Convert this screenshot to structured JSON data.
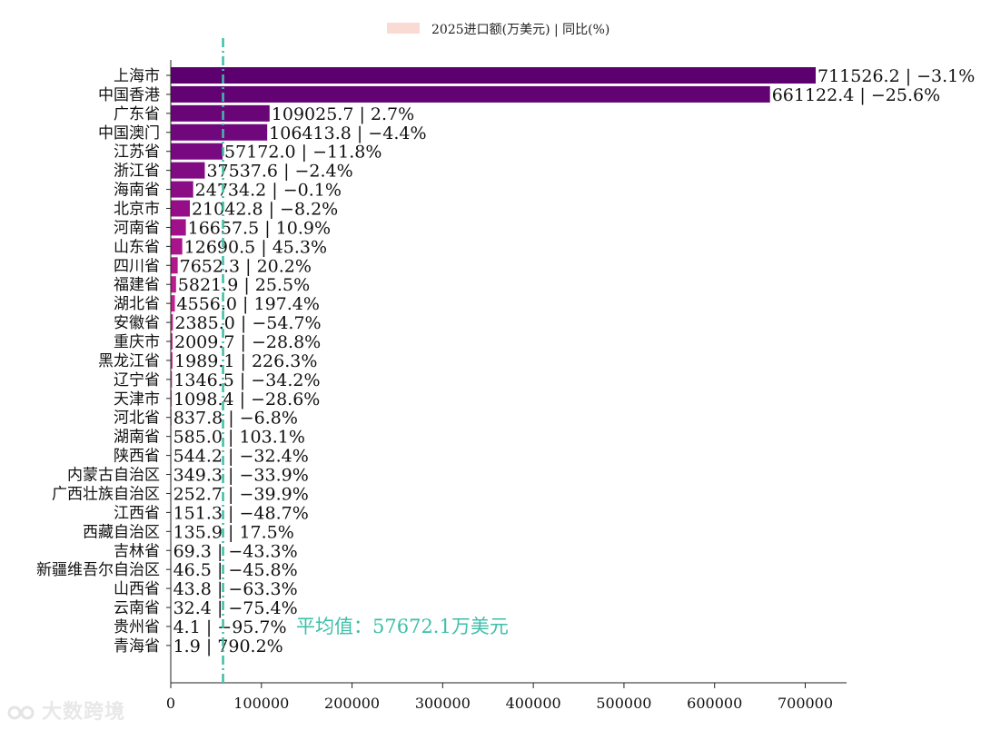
{
  "chart_data": {
    "type": "bar",
    "orientation": "horizontal",
    "legend": {
      "label": "2025进口额(万美元) | 同比(%)",
      "swatch_color": "#fadbd4",
      "position": "top-center"
    },
    "categories": [
      "上海市",
      "中国香港",
      "广东省",
      "中国澳门",
      "江苏省",
      "浙江省",
      "海南省",
      "北京市",
      "河南省",
      "山东省",
      "四川省",
      "福建省",
      "湖北省",
      "安徽省",
      "重庆市",
      "黑龙江省",
      "辽宁省",
      "天津市",
      "河北省",
      "湖南省",
      "陕西省",
      "内蒙古自治区",
      "广西壮族自治区",
      "江西省",
      "西藏自治区",
      "吉林省",
      "新疆维吾尔自治区",
      "山西省",
      "云南省",
      "贵州省",
      "青海省"
    ],
    "values": [
      711526.2,
      661122.4,
      109025.7,
      106413.8,
      57172.0,
      37537.6,
      24734.2,
      21042.8,
      16657.5,
      12690.5,
      7652.3,
      5821.9,
      4556.0,
      2385.0,
      2009.7,
      1989.1,
      1346.5,
      1098.4,
      837.8,
      585.0,
      544.2,
      349.3,
      252.7,
      151.3,
      135.9,
      69.3,
      46.5,
      43.8,
      32.4,
      4.1,
      1.9
    ],
    "data_labels": [
      "711526.2 | −3.1%",
      "661122.4 | −25.6%",
      "109025.7 | 2.7%",
      "106413.8 | −4.4%",
      "57172.0 | −11.8%",
      "37537.6 | −2.4%",
      "24734.2 | −0.1%",
      "21042.8 | −8.2%",
      "16657.5 | 10.9%",
      "12690.5 | 45.3%",
      "7652.3 | 20.2%",
      "5821.9 | 25.5%",
      "4556.0 | 197.4%",
      "2385.0 | −54.7%",
      "2009.7 | −28.8%",
      "1989.1 | 226.3%",
      "1346.5 | −34.2%",
      "1098.4 | −28.6%",
      "837.8 | −6.8%",
      "585.0 | 103.1%",
      "544.2 | −32.4%",
      "349.3 | −33.9%",
      "252.7 | −39.9%",
      "151.3 | −48.7%",
      "135.9 | 17.5%",
      "69.3 | −43.3%",
      "46.5 | −45.8%",
      "43.8 | −63.3%",
      "32.4 | −75.4%",
      "4.1 | −95.7%",
      "1.9 | 790.2%"
    ],
    "xlim": [
      0,
      750000
    ],
    "xticks": [
      0,
      100000,
      200000,
      300000,
      400000,
      500000,
      600000,
      700000
    ],
    "average": {
      "value": 57672.1,
      "label": "平均值：57672.1万美元",
      "color": "#3dbfa8"
    },
    "color_scale": [
      "#5c006f",
      "#7a0a82",
      "#a5118a",
      "#c8278f",
      "#d9489a",
      "#e87aa8",
      "#f3b1bf",
      "#fadbd4"
    ],
    "grid": false
  },
  "watermark": {
    "text": "大数跨境"
  }
}
